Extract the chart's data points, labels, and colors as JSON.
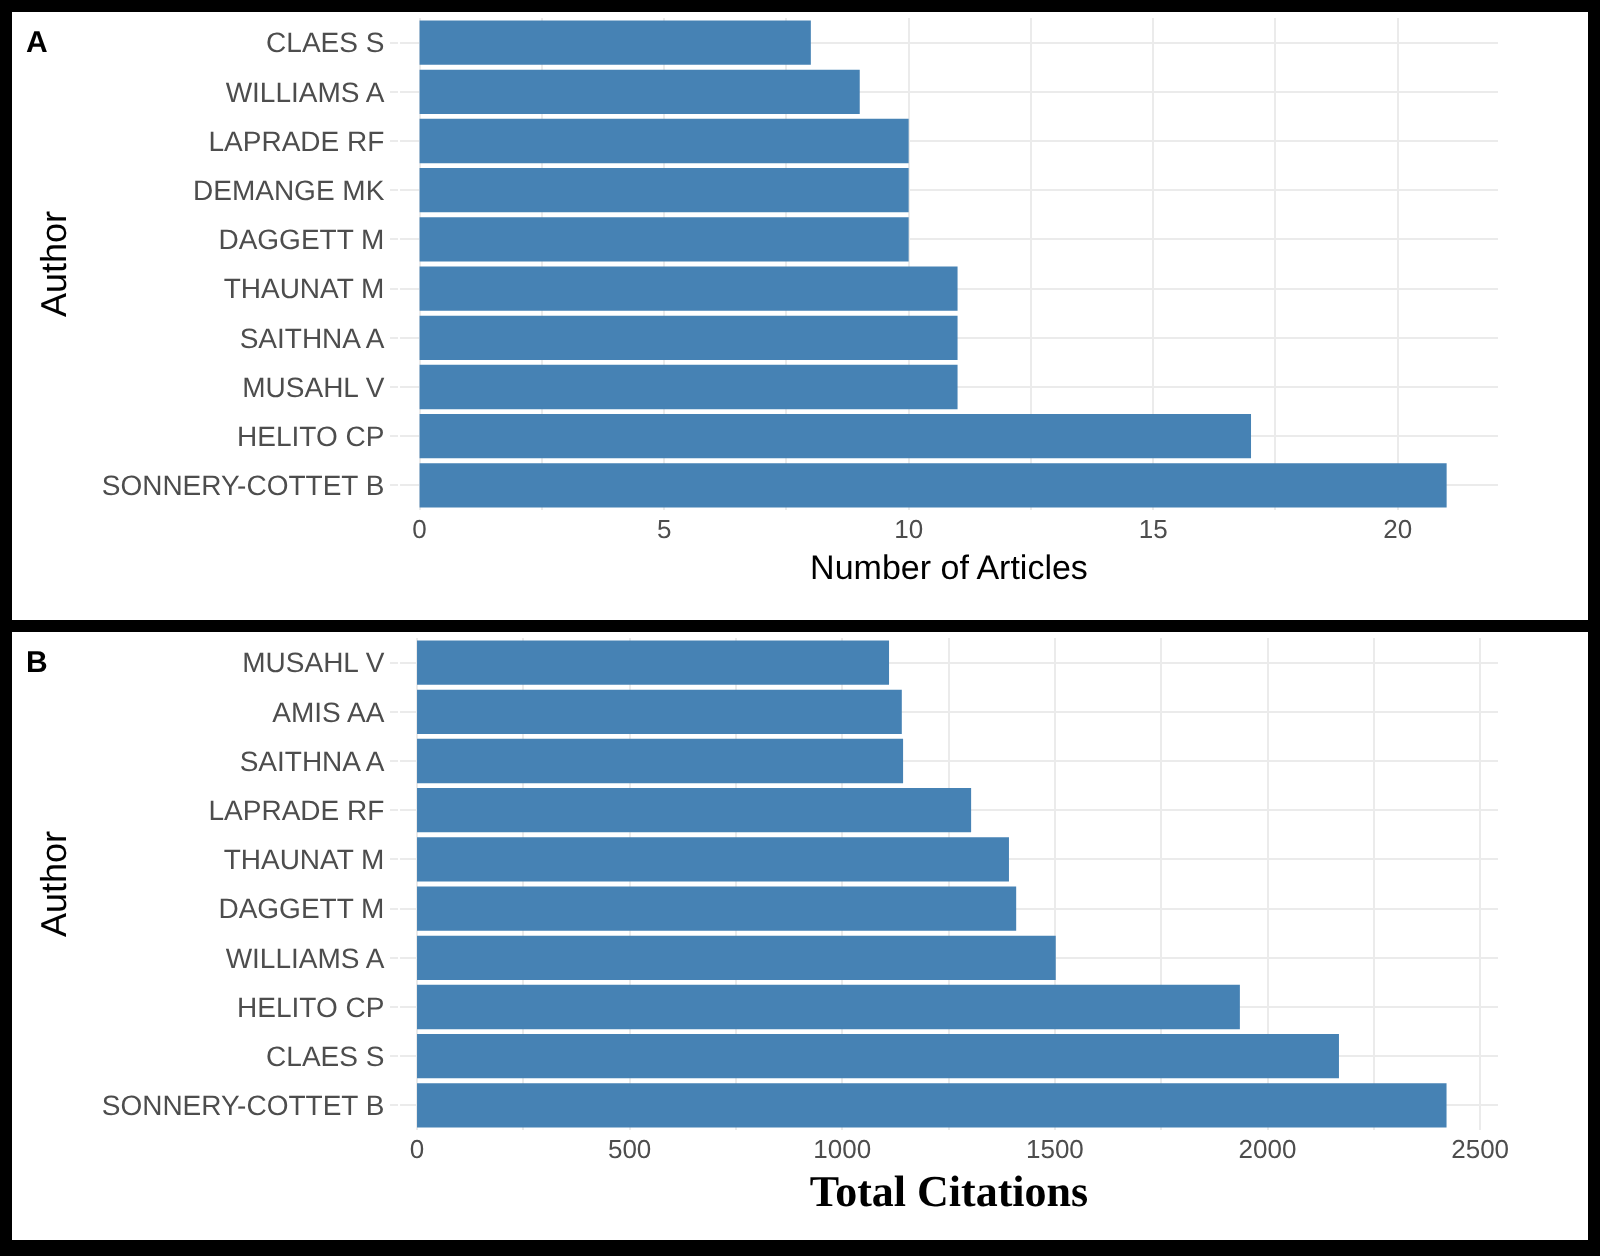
{
  "chart_data": [
    {
      "type": "bar",
      "orientation": "horizontal",
      "annotations": [
        "A"
      ],
      "xlabel": "Number of Articles",
      "ylabel": "Author",
      "categories": [
        "CLAES S",
        "WILLIAMS A",
        "LAPRADE RF",
        "DEMANGE MK",
        "DAGGETT M",
        "THAUNAT M",
        "SAITHNA A",
        "MUSAHL V",
        "HELITO CP",
        "SONNERY-COTTET B"
      ],
      "values": [
        8,
        9,
        10,
        10,
        10,
        11,
        11,
        11,
        17,
        21
      ],
      "color": "#4682b4",
      "xlim": [
        -0.4,
        22.05
      ],
      "xticks": [
        0,
        {
          "value": 2.5,
          "label": null
        },
        5,
        {
          "value": 7.5,
          "label": null
        },
        10,
        {
          "value": 12.5,
          "label": null
        },
        15,
        {
          "value": 17.5,
          "label": null
        },
        20
      ],
      "grid": true
    },
    {
      "type": "bar",
      "orientation": "horizontal",
      "annotations": [
        "B"
      ],
      "xlabel": "Total Citations",
      "ylabel": "Author",
      "categories": [
        "MUSAHL V",
        "AMIS AA",
        "SAITHNA A",
        "LAPRADE RF",
        "THAUNAT M",
        "DAGGETT M",
        "WILLIAMS A",
        "HELITO CP",
        "CLAES S",
        "SONNERY-COTTET B"
      ],
      "values": [
        1110,
        1140,
        1143,
        1303,
        1392,
        1409,
        1502,
        1935,
        2168,
        2421
      ],
      "color": "#4682b4",
      "xlim": [
        -40,
        2542
      ],
      "xticks": [
        0,
        {
          "value": 250,
          "label": null
        },
        500,
        {
          "value": 750,
          "label": null
        },
        1000,
        {
          "value": 1250,
          "label": null
        },
        1500,
        {
          "value": 1750,
          "label": null
        },
        2000,
        {
          "value": 2250,
          "label": null
        },
        2500
      ],
      "grid": true
    }
  ]
}
